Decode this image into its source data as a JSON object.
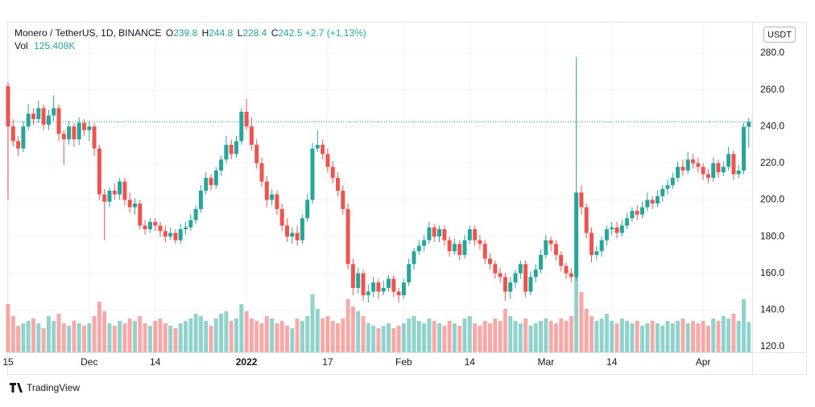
{
  "chart_data": {
    "type": "candlestick",
    "legend": {
      "symbol": "Monero / TetherUS, 1D, BINANCE",
      "o": "O",
      "h": "H",
      "l": "L",
      "c": "C",
      "change": "+2.7 (+1.13%)",
      "vol": "Vol",
      "vol_value": "125.408K",
      "currency": "USDT"
    },
    "brand": "TradingView",
    "up_color": "#26a69a",
    "down_color": "#ef5350",
    "grid": true,
    "ylim": [
      120,
      280
    ],
    "yticks": [
      {
        "value": 120,
        "label": "120.0"
      },
      {
        "value": 140,
        "label": "140.0"
      },
      {
        "value": 160,
        "label": "160.0"
      },
      {
        "value": 180,
        "label": "180.0"
      },
      {
        "value": 200,
        "label": "200.0"
      },
      {
        "value": 220,
        "label": "220.0"
      },
      {
        "value": 240,
        "label": "240.0"
      },
      {
        "value": 260,
        "label": "260.0"
      },
      {
        "value": 280,
        "label": "280.0"
      }
    ],
    "xticks": [
      {
        "value": 0,
        "label": "15"
      },
      {
        "value": 16,
        "label": "Dec"
      },
      {
        "value": 29,
        "label": "14"
      },
      {
        "value": 47,
        "label": "2022"
      },
      {
        "value": 63,
        "label": "17"
      },
      {
        "value": 78,
        "label": "Feb"
      },
      {
        "value": 91,
        "label": "14"
      },
      {
        "value": 106,
        "label": "Mar"
      },
      {
        "value": 119,
        "label": "14"
      },
      {
        "value": 137,
        "label": "Apr"
      }
    ],
    "open": [
      262,
      240,
      232,
      228,
      240,
      247,
      244,
      250,
      241,
      246,
      250,
      236,
      233,
      240,
      233,
      242,
      238,
      240,
      228,
      203,
      199,
      205,
      203,
      210,
      200,
      196,
      198,
      186,
      184,
      188,
      186,
      183,
      180,
      182,
      178,
      184,
      185,
      189,
      195,
      205,
      212,
      208,
      216,
      222,
      230,
      225,
      232,
      248,
      240,
      230,
      220,
      210,
      200,
      203,
      195,
      186,
      180,
      182,
      178,
      190,
      200,
      228,
      230,
      225,
      218,
      212,
      205,
      195,
      165,
      152,
      160,
      148,
      150,
      155,
      150,
      152,
      157,
      150,
      148,
      155,
      165,
      172,
      175,
      178,
      185,
      180,
      184,
      178,
      172,
      176,
      170,
      178,
      184,
      178,
      176,
      168,
      165,
      160,
      158,
      150,
      155,
      160,
      165,
      150,
      158,
      162,
      170,
      178,
      176,
      170,
      164,
      160,
      158,
      204,
      196,
      182,
      170,
      172,
      178,
      184,
      185,
      182,
      186,
      190,
      194,
      192,
      196,
      200,
      198,
      202,
      206,
      208,
      212,
      218,
      216,
      222,
      220,
      218,
      214,
      212,
      220,
      215,
      218,
      225,
      214,
      216,
      239.8
    ],
    "high": [
      264,
      244,
      235,
      243,
      252,
      250,
      254,
      252,
      249,
      257,
      252,
      238,
      243,
      242,
      245,
      244,
      243,
      242,
      230,
      206,
      207,
      209,
      212,
      212,
      204,
      201,
      200,
      189,
      190,
      190,
      188,
      186,
      185,
      184,
      187,
      188,
      192,
      197,
      208,
      215,
      214,
      218,
      224,
      235,
      233,
      235,
      250,
      255,
      245,
      233,
      223,
      213,
      206,
      205,
      198,
      190,
      185,
      186,
      192,
      203,
      231,
      238,
      233,
      228,
      221,
      215,
      208,
      198,
      168,
      163,
      162,
      154,
      158,
      157,
      156,
      159,
      159,
      152,
      157,
      168,
      174,
      178,
      181,
      188,
      187,
      186,
      186,
      180,
      179,
      178,
      181,
      186,
      186,
      181,
      178,
      171,
      167,
      163,
      160,
      158,
      162,
      167,
      167,
      161,
      165,
      173,
      181,
      180,
      178,
      172,
      166,
      163,
      278,
      208,
      198,
      185,
      175,
      180,
      186,
      188,
      188,
      189,
      193,
      196,
      197,
      199,
      204,
      202,
      205,
      208,
      211,
      215,
      221,
      222,
      226,
      225,
      223,
      220,
      217,
      223,
      222,
      221,
      229,
      227,
      219,
      242,
      244.8
    ],
    "low": [
      200,
      229,
      224,
      226,
      238,
      241,
      242,
      238,
      238,
      243,
      232,
      219,
      230,
      229,
      230,
      235,
      232,
      224,
      200,
      178,
      196,
      200,
      200,
      197,
      193,
      192,
      184,
      181,
      182,
      183,
      180,
      177,
      178,
      176,
      176,
      181,
      183,
      187,
      193,
      203,
      205,
      206,
      213,
      220,
      222,
      223,
      230,
      238,
      227,
      217,
      207,
      196,
      197,
      192,
      183,
      177,
      176,
      175,
      176,
      188,
      198,
      226,
      222,
      215,
      209,
      202,
      192,
      162,
      148,
      149,
      145,
      144,
      147,
      146,
      148,
      150,
      147,
      144,
      146,
      153,
      162,
      170,
      172,
      176,
      177,
      177,
      175,
      169,
      170,
      167,
      168,
      176,
      175,
      173,
      165,
      162,
      157,
      155,
      145,
      146,
      152,
      157,
      147,
      148,
      155,
      160,
      168,
      172,
      167,
      161,
      157,
      155,
      156,
      192,
      179,
      166,
      167,
      169,
      175,
      181,
      179,
      180,
      184,
      188,
      189,
      190,
      194,
      195,
      196,
      199,
      203,
      206,
      210,
      213,
      214,
      217,
      215,
      211,
      209,
      210,
      212,
      213,
      216,
      211,
      212,
      214,
      228.4
    ],
    "close": [
      240,
      232,
      228,
      240,
      247,
      244,
      250,
      241,
      246,
      250,
      236,
      233,
      240,
      233,
      242,
      238,
      240,
      228,
      203,
      199,
      205,
      203,
      210,
      200,
      196,
      198,
      186,
      184,
      188,
      186,
      183,
      180,
      182,
      178,
      184,
      185,
      189,
      195,
      205,
      212,
      208,
      216,
      222,
      230,
      225,
      232,
      248,
      240,
      230,
      220,
      210,
      200,
      203,
      195,
      186,
      180,
      182,
      178,
      190,
      200,
      228,
      230,
      225,
      218,
      212,
      205,
      195,
      165,
      152,
      160,
      148,
      150,
      155,
      150,
      152,
      157,
      150,
      148,
      155,
      165,
      172,
      175,
      178,
      185,
      180,
      184,
      178,
      172,
      176,
      170,
      178,
      184,
      178,
      176,
      168,
      165,
      160,
      158,
      150,
      155,
      160,
      165,
      150,
      158,
      162,
      170,
      178,
      176,
      170,
      164,
      160,
      158,
      204,
      196,
      182,
      170,
      172,
      178,
      184,
      185,
      182,
      186,
      190,
      194,
      192,
      196,
      200,
      198,
      202,
      206,
      208,
      212,
      218,
      216,
      222,
      220,
      218,
      214,
      212,
      220,
      215,
      218,
      225,
      214,
      216,
      239.8,
      242.5
    ],
    "volume": [
      200,
      150,
      110,
      120,
      130,
      140,
      120,
      100,
      150,
      130,
      160,
      120,
      110,
      130,
      120,
      110,
      120,
      150,
      210,
      170,
      120,
      110,
      130,
      120,
      140,
      130,
      150,
      120,
      110,
      130,
      140,
      120,
      110,
      100,
      120,
      130,
      140,
      160,
      150,
      130,
      110,
      140,
      160,
      170,
      130,
      140,
      200,
      170,
      140,
      130,
      120,
      150,
      140,
      120,
      130,
      110,
      100,
      140,
      130,
      150,
      240,
      180,
      140,
      150,
      130,
      120,
      140,
      220,
      190,
      170,
      150,
      120,
      110,
      100,
      110,
      120,
      100,
      110,
      120,
      140,
      150,
      130,
      120,
      140,
      130,
      120,
      110,
      130,
      120,
      110,
      140,
      150,
      120,
      110,
      130,
      120,
      140,
      130,
      180,
      150,
      130,
      120,
      140,
      110,
      120,
      130,
      140,
      130,
      120,
      140,
      130,
      150,
      340,
      250,
      180,
      150,
      130,
      140,
      160,
      130,
      120,
      140,
      130,
      120,
      130,
      110,
      120,
      130,
      120,
      110,
      130,
      120,
      130,
      140,
      120,
      130,
      120,
      130,
      110,
      140,
      130,
      150,
      140,
      160,
      130,
      220,
      125.408
    ]
  }
}
